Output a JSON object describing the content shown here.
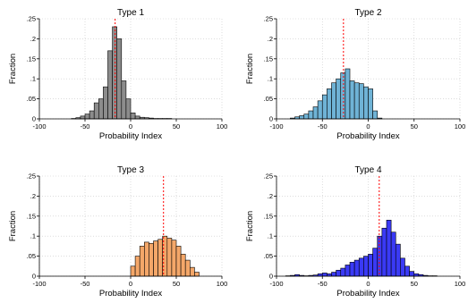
{
  "colors": {
    "bar_stroke": "#000000",
    "refline": "#ff0000",
    "grid": "#c8c8c8"
  },
  "chart_data": [
    {
      "type": "bar",
      "title": "Type 1",
      "xlabel": "Probability Index",
      "ylabel": "Fraction",
      "xlim": [
        -100,
        100
      ],
      "ylim": [
        0,
        0.25
      ],
      "xticks": [
        "-100",
        "-50",
        "0",
        "50",
        "100"
      ],
      "yticks": [
        "0",
        ".05",
        ".1",
        ".15",
        ".2",
        ".25"
      ],
      "bin_width": 5,
      "bin_starts": [
        -65,
        -60,
        -55,
        -50,
        -45,
        -40,
        -35,
        -30,
        -25,
        -20,
        -15,
        -10,
        -5,
        0,
        5,
        10,
        15,
        20,
        25,
        30,
        35,
        40
      ],
      "values": [
        0.001,
        0.003,
        0.007,
        0.012,
        0.02,
        0.04,
        0.05,
        0.08,
        0.17,
        0.23,
        0.2,
        0.095,
        0.05,
        0.015,
        0.007,
        0.004,
        0.003,
        0.002,
        0.001,
        0.001,
        0.001,
        0.001
      ],
      "bar_color": "#8c8c8c",
      "refline_x": -17
    },
    {
      "type": "bar",
      "title": "Type 2",
      "xlabel": "Probability Index",
      "ylabel": "Fraction",
      "xlim": [
        -100,
        100
      ],
      "ylim": [
        0,
        0.25
      ],
      "xticks": [
        "-100",
        "-50",
        "0",
        "50",
        "100"
      ],
      "yticks": [
        "0",
        ".05",
        ".1",
        ".15",
        ".2",
        ".25"
      ],
      "bin_width": 5,
      "bin_starts": [
        -85,
        -80,
        -75,
        -70,
        -65,
        -60,
        -55,
        -50,
        -45,
        -40,
        -35,
        -30,
        -25,
        -20,
        -15,
        -10,
        -5,
        0,
        5,
        10
      ],
      "values": [
        0.002,
        0.005,
        0.008,
        0.012,
        0.02,
        0.03,
        0.045,
        0.06,
        0.075,
        0.09,
        0.1,
        0.115,
        0.125,
        0.095,
        0.09,
        0.088,
        0.08,
        0.075,
        0.02,
        0.002
      ],
      "bar_color": "#6fb3d6",
      "refline_x": -27
    },
    {
      "type": "bar",
      "title": "Type 3",
      "xlabel": "Probability Index",
      "ylabel": "Fraction",
      "xlim": [
        -100,
        100
      ],
      "ylim": [
        0,
        0.25
      ],
      "xticks": [
        "-100",
        "-50",
        "0",
        "50",
        "100"
      ],
      "yticks": [
        "0",
        ".05",
        ".1",
        ".15",
        ".2",
        ".25"
      ],
      "bin_width": 5,
      "bin_starts": [
        0,
        5,
        10,
        15,
        20,
        25,
        30,
        35,
        40,
        45,
        50,
        55,
        60,
        65,
        70
      ],
      "values": [
        0.025,
        0.05,
        0.075,
        0.085,
        0.082,
        0.088,
        0.092,
        0.1,
        0.095,
        0.09,
        0.075,
        0.055,
        0.04,
        0.022,
        0.01
      ],
      "bar_color": "#f4a769",
      "refline_x": 36
    },
    {
      "type": "bar",
      "title": "Type 4",
      "xlabel": "Probability Index",
      "ylabel": "Fraction",
      "xlim": [
        -100,
        100
      ],
      "ylim": [
        0,
        0.25
      ],
      "xticks": [
        "-100",
        "-50",
        "0",
        "50",
        "100"
      ],
      "yticks": [
        "0",
        ".05",
        ".1",
        ".15",
        ".2",
        ".25"
      ],
      "bin_width": 5,
      "bin_starts": [
        -90,
        -85,
        -80,
        -75,
        -70,
        -65,
        -60,
        -55,
        -50,
        -45,
        -40,
        -35,
        -30,
        -25,
        -20,
        -15,
        -10,
        -5,
        0,
        5,
        10,
        15,
        20,
        25,
        30,
        35,
        40,
        45,
        50,
        55,
        60,
        65,
        70
      ],
      "values": [
        0.001,
        0.002,
        0.004,
        0.002,
        0.001,
        0.002,
        0.003,
        0.006,
        0.008,
        0.006,
        0.01,
        0.015,
        0.02,
        0.028,
        0.035,
        0.04,
        0.045,
        0.05,
        0.055,
        0.07,
        0.1,
        0.12,
        0.14,
        0.11,
        0.08,
        0.045,
        0.025,
        0.012,
        0.006,
        0.004,
        0.002,
        0.001,
        0.001
      ],
      "bar_color": "#3a3af5",
      "refline_x": 12
    }
  ]
}
